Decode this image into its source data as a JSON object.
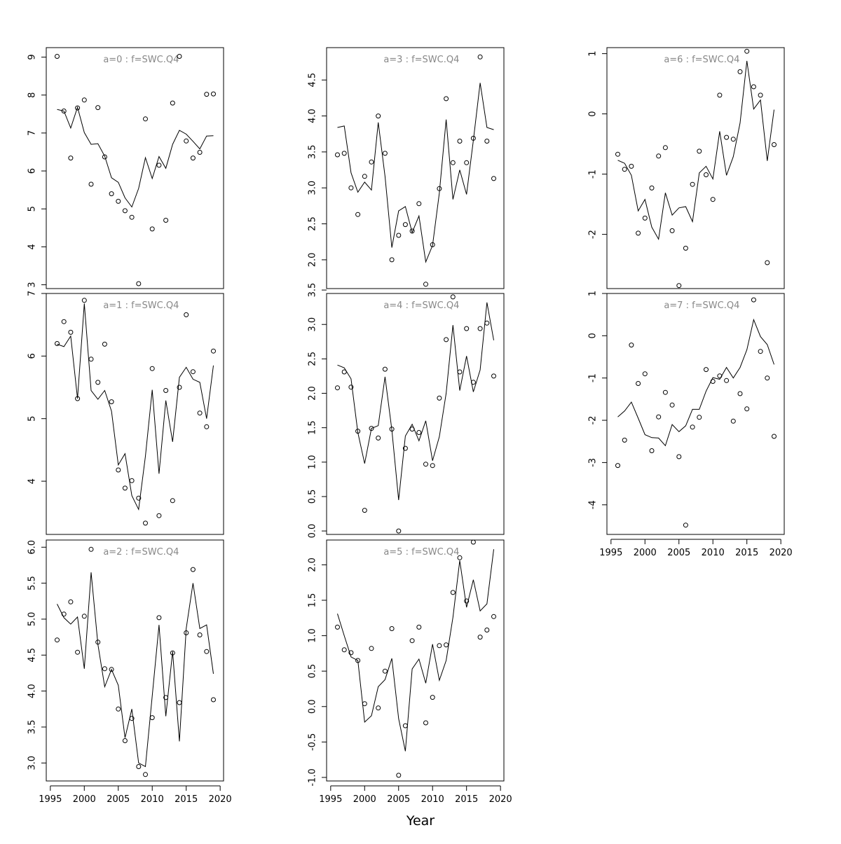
{
  "chart_data": {
    "type": "scatter",
    "xlabel": "Year",
    "x_tick_labels": [
      "1995",
      "2000",
      "2005",
      "2010",
      "2015",
      "2020"
    ],
    "xlim": [
      1995,
      2020
    ],
    "years": [
      1996,
      1997,
      1998,
      1999,
      2000,
      2001,
      2002,
      2003,
      2004,
      2005,
      2006,
      2007,
      2008,
      2009,
      2010,
      2011,
      2012,
      2013,
      2014,
      2015,
      2016,
      2017,
      2018,
      2019
    ],
    "series_style": {
      "points": "observed (open circles)",
      "line": "fitted"
    },
    "panels": [
      {
        "title": "a=0 : f=SWC.Q4",
        "ylim": [
          2.9,
          9.25
        ],
        "y_tick_labels": [
          "3",
          "4",
          "5",
          "6",
          "7",
          "8",
          "9"
        ],
        "y_ticks": [
          3,
          4,
          5,
          6,
          7,
          8,
          9
        ],
        "x_axis_labels": false,
        "points": [
          9.02,
          7.58,
          6.34,
          7.66,
          7.87,
          5.65,
          7.67,
          6.37,
          5.4,
          5.2,
          4.95,
          4.78,
          3.03,
          7.37,
          4.47,
          6.15,
          4.7,
          7.79,
          9.02,
          6.79,
          6.34,
          6.49,
          8.02,
          8.03
        ],
        "fitted": [
          7.62,
          7.58,
          7.13,
          7.68,
          7.01,
          6.7,
          6.72,
          6.39,
          5.82,
          5.7,
          5.29,
          5.05,
          5.54,
          6.35,
          5.8,
          6.38,
          6.07,
          6.7,
          7.07,
          6.97,
          6.78,
          6.58,
          6.92,
          6.93
        ]
      },
      {
        "title": "a=1 : f=SWC.Q4",
        "ylim": [
          3.15,
          7.0
        ],
        "y_tick_labels": [
          "4",
          "5",
          "6",
          "7"
        ],
        "y_ticks": [
          4,
          5,
          6,
          7
        ],
        "x_axis_labels": false,
        "points": [
          6.2,
          6.55,
          6.38,
          5.32,
          6.89,
          5.95,
          5.58,
          6.19,
          5.27,
          4.18,
          3.89,
          4.01,
          3.73,
          3.33,
          5.8,
          3.45,
          5.45,
          3.69,
          5.5,
          6.66,
          5.75,
          5.09,
          4.87,
          6.08
        ],
        "fitted": [
          6.19,
          6.15,
          6.32,
          5.32,
          6.84,
          5.45,
          5.31,
          5.45,
          5.12,
          4.26,
          4.44,
          3.77,
          3.55,
          4.4,
          5.46,
          4.12,
          5.29,
          4.63,
          5.66,
          5.82,
          5.63,
          5.58,
          5.0,
          5.85
        ]
      },
      {
        "title": "a=2 : f=SWC.Q4",
        "ylim": [
          2.75,
          6.1
        ],
        "y_tick_labels": [
          "3.0",
          "3.5",
          "4.0",
          "4.5",
          "5.0",
          "5.5",
          "6.0"
        ],
        "y_ticks": [
          3.0,
          3.5,
          4.0,
          4.5,
          5.0,
          5.5,
          6.0
        ],
        "x_axis_labels": true,
        "points": [
          4.71,
          5.07,
          5.24,
          4.54,
          5.04,
          5.97,
          4.68,
          4.31,
          4.3,
          3.75,
          3.31,
          3.62,
          2.95,
          2.84,
          3.63,
          5.02,
          3.91,
          4.53,
          3.84,
          4.81,
          5.69,
          4.78,
          4.55,
          3.88
        ],
        "fitted": [
          5.21,
          5.02,
          4.93,
          5.03,
          4.31,
          5.65,
          4.65,
          4.06,
          4.3,
          4.08,
          3.35,
          3.75,
          3.0,
          2.95,
          3.93,
          4.92,
          3.65,
          4.55,
          3.3,
          4.87,
          5.5,
          4.87,
          4.92,
          4.24
        ]
      },
      {
        "title": "a=3 : f=SWC.Q4",
        "ylim": [
          1.6,
          4.95
        ],
        "y_tick_labels": [
          "2.0",
          "2.5",
          "3.0",
          "3.5",
          "4.0",
          "4.5"
        ],
        "y_ticks": [
          2.0,
          2.5,
          3.0,
          3.5,
          4.0,
          4.5
        ],
        "x_axis_labels": false,
        "points": [
          3.46,
          3.48,
          3.0,
          2.63,
          3.16,
          3.36,
          4.0,
          3.48,
          2.0,
          2.34,
          2.49,
          2.4,
          2.78,
          1.66,
          2.21,
          2.99,
          4.24,
          3.35,
          3.65,
          3.35,
          3.69,
          4.82,
          3.65,
          3.13
        ],
        "fitted": [
          3.84,
          3.86,
          3.21,
          2.94,
          3.08,
          2.97,
          3.91,
          3.16,
          2.17,
          2.68,
          2.74,
          2.38,
          2.61,
          1.97,
          2.2,
          2.93,
          3.95,
          2.84,
          3.25,
          2.91,
          3.66,
          4.46,
          3.84,
          3.81
        ]
      },
      {
        "title": "a=4 : f=SWC.Q4",
        "ylim": [
          -0.05,
          3.45
        ],
        "y_tick_labels": [
          "0.0",
          "0.5",
          "1.0",
          "1.5",
          "2.0",
          "2.5",
          "3.0",
          "3.5"
        ],
        "y_ticks": [
          0.0,
          0.5,
          1.0,
          1.5,
          2.0,
          2.5,
          3.0,
          3.5
        ],
        "x_axis_labels": false,
        "points": [
          2.08,
          2.31,
          2.09,
          1.45,
          0.3,
          1.49,
          1.35,
          2.35,
          1.48,
          0.0,
          1.2,
          1.48,
          1.43,
          0.97,
          0.95,
          1.93,
          2.78,
          3.4,
          2.31,
          2.94,
          2.16,
          2.94,
          3.02,
          2.25
        ],
        "fitted": [
          2.41,
          2.37,
          2.21,
          1.43,
          0.98,
          1.49,
          1.53,
          2.24,
          1.47,
          0.45,
          1.38,
          1.55,
          1.31,
          1.6,
          1.02,
          1.37,
          2.0,
          2.99,
          2.04,
          2.54,
          2.02,
          2.34,
          3.32,
          2.77
        ]
      },
      {
        "title": "a=5 : f=SWC.Q4",
        "ylim": [
          -1.05,
          2.35
        ],
        "y_tick_labels": [
          "-1.0",
          "-0.5",
          "0.0",
          "0.5",
          "1.0",
          "1.5",
          "2.0"
        ],
        "y_ticks": [
          -1.0,
          -0.5,
          0.0,
          0.5,
          1.0,
          1.5,
          2.0
        ],
        "x_axis_labels": true,
        "points": [
          1.12,
          0.8,
          0.76,
          0.65,
          0.04,
          0.82,
          -0.02,
          0.5,
          1.1,
          -0.97,
          -0.27,
          0.93,
          1.12,
          -0.23,
          0.13,
          0.86,
          0.87,
          1.61,
          2.1,
          1.49,
          2.32,
          0.98,
          1.08,
          1.27
        ],
        "fitted": [
          1.31,
          1.0,
          0.7,
          0.65,
          -0.22,
          -0.13,
          0.28,
          0.38,
          0.68,
          -0.17,
          -0.63,
          0.53,
          0.67,
          0.33,
          0.88,
          0.37,
          0.65,
          1.26,
          2.06,
          1.4,
          1.79,
          1.35,
          1.45,
          2.22
        ]
      },
      {
        "title": "a=6 : f=SWC.Q4",
        "ylim": [
          -2.9,
          1.1
        ],
        "y_tick_labels": [
          "-2",
          "-1",
          "0",
          "1"
        ],
        "y_ticks": [
          -2,
          -1,
          0,
          1
        ],
        "x_axis_labels": false,
        "points": [
          -0.67,
          -0.92,
          -0.87,
          -1.98,
          -1.73,
          -1.23,
          -0.7,
          -0.56,
          -1.94,
          -2.85,
          -2.23,
          -1.17,
          -0.62,
          -1.01,
          -1.42,
          0.31,
          -0.39,
          -0.42,
          0.7,
          1.04,
          0.45,
          0.31,
          -2.47,
          -0.51
        ],
        "fitted": [
          -0.77,
          -0.82,
          -1.02,
          -1.61,
          -1.42,
          -1.88,
          -2.08,
          -1.31,
          -1.68,
          -1.56,
          -1.54,
          -1.79,
          -0.98,
          -0.87,
          -1.08,
          -0.29,
          -1.02,
          -0.71,
          -0.15,
          0.88,
          0.08,
          0.23,
          -0.78,
          0.07
        ]
      },
      {
        "title": "a=7 : f=SWC.Q4",
        "ylim": [
          -4.7,
          1.0
        ],
        "y_tick_labels": [
          "-4",
          "-3",
          "-2",
          "-1",
          "0",
          "1"
        ],
        "y_ticks": [
          -4,
          -3,
          -2,
          -1,
          0,
          1
        ],
        "x_axis_labels": true,
        "points": [
          -3.07,
          -2.47,
          -0.22,
          -1.13,
          -0.9,
          -2.72,
          -1.92,
          -1.34,
          -1.64,
          -2.86,
          -4.48,
          -2.16,
          -1.93,
          -0.8,
          -1.08,
          -0.95,
          -1.06,
          -2.02,
          -1.37,
          -1.73,
          0.85,
          -0.37,
          -1.0,
          -2.38
        ],
        "fitted": [
          -1.92,
          -1.78,
          -1.57,
          -1.95,
          -2.34,
          -2.41,
          -2.42,
          -2.6,
          -2.1,
          -2.27,
          -2.13,
          -1.74,
          -1.74,
          -1.31,
          -0.99,
          -1.03,
          -0.75,
          -1.0,
          -0.75,
          -0.33,
          0.38,
          -0.02,
          -0.21,
          -0.68
        ]
      }
    ]
  }
}
